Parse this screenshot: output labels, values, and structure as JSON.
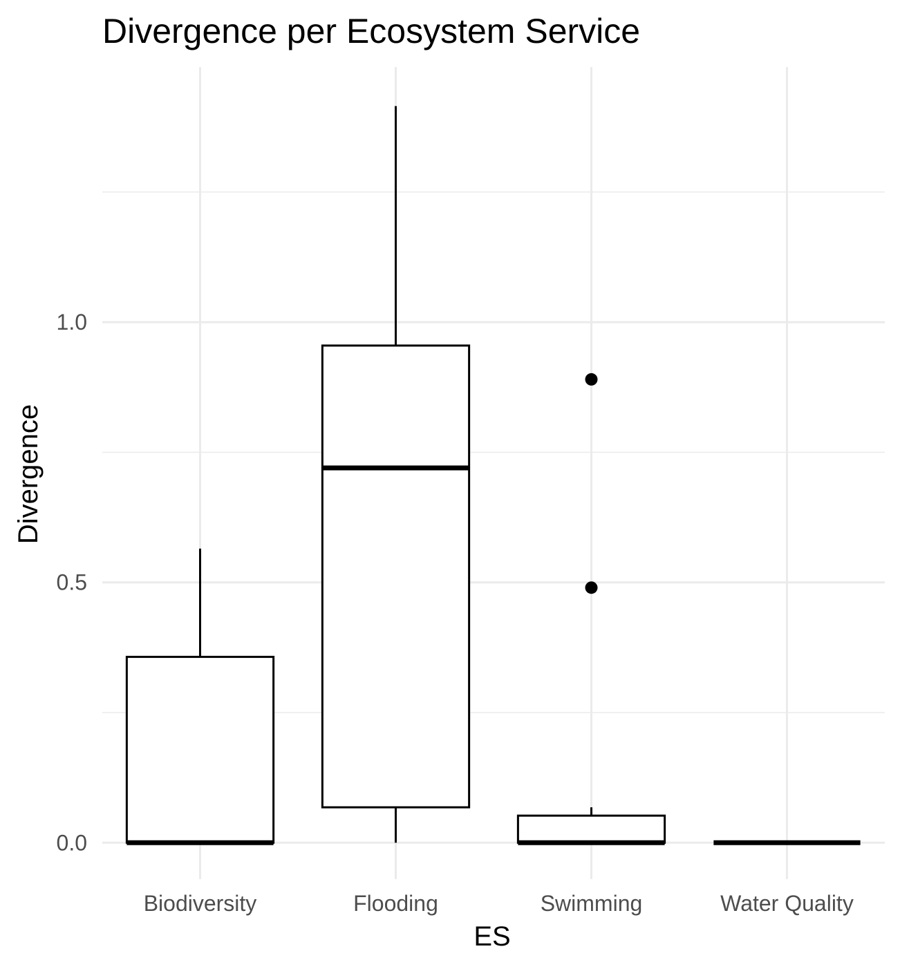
{
  "chart_data": {
    "type": "boxplot",
    "title": "Divergence per Ecosystem Service",
    "xlabel": "ES",
    "ylabel": "Divergence",
    "categories": [
      "Biodiversity",
      "Flooding",
      "Swimming",
      "Water Quality"
    ],
    "yticks": [
      0.0,
      0.5,
      1.0
    ],
    "ytick_labels": [
      "0.0",
      "0.5",
      "1.0"
    ],
    "ylim": [
      -0.07,
      1.49
    ],
    "grid": true,
    "boxes": [
      {
        "category": "Biodiversity",
        "min": 0.0,
        "q1": 0.0,
        "median": 0.0,
        "q3": 0.357,
        "max": 0.565,
        "outliers": []
      },
      {
        "category": "Flooding",
        "min": 0.0,
        "q1": 0.068,
        "median": 0.72,
        "q3": 0.955,
        "max": 1.415,
        "outliers": []
      },
      {
        "category": "Swimming",
        "min": 0.0,
        "q1": 0.0,
        "median": 0.0,
        "q3": 0.052,
        "max": 0.068,
        "outliers": [
          0.89,
          0.49
        ]
      },
      {
        "category": "Water Quality",
        "min": 0.0,
        "q1": 0.0,
        "median": 0.0,
        "q3": 0.0,
        "max": 0.0,
        "outliers": []
      }
    ],
    "colors": {
      "grid": "#ebebeb",
      "box": "#000000",
      "fill": "#ffffff",
      "text": "#000000",
      "tick": "#4d4d4d"
    }
  }
}
